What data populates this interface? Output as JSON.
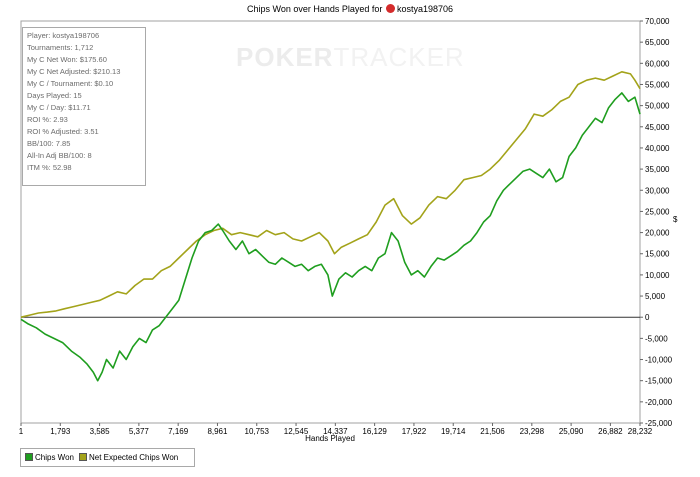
{
  "title": {
    "prefix": "Chips Won over Hands Played for",
    "player": "kostya198706"
  },
  "watermark": {
    "part1": "POKER",
    "part2": "TRACKER"
  },
  "stats": [
    "Player: kostya198706",
    "Tournaments: 1,712",
    "My C Net Won: $175.60",
    "My C Net Adjusted: $210.13",
    "My C / Tournament: $0.10",
    "Days Played: 15",
    "My C / Day: $11.71",
    "ROI %: 2.93",
    "ROI % Adjusted: 3.51",
    "BB/100: 7.85",
    "All-In Adj BB/100: 8",
    "ITM %: 52.98"
  ],
  "legend": [
    {
      "label": "Chips Won",
      "color": "#1f9e1f"
    },
    {
      "label": "Net Expected Chips Won",
      "color": "#a3a31a"
    }
  ],
  "chart_data": {
    "type": "line",
    "xlabel": "Hands Played",
    "ylabel": "$",
    "x_ticks": [
      "1",
      "1,793",
      "3,585",
      "5,377",
      "7,169",
      "8,961",
      "10,753",
      "12,545",
      "14,337",
      "16,129",
      "17,922",
      "19,714",
      "21,506",
      "23,298",
      "25,090",
      "26,882",
      "28,232"
    ],
    "y_ticks": [
      "70,000",
      "65,000",
      "60,000",
      "55,000",
      "50,000",
      "45,000",
      "40,000",
      "35,000",
      "30,000",
      "25,000",
      "20,000",
      "15,000",
      "10,000",
      "5,000",
      "0",
      "-5,000",
      "-10,000",
      "-15,000",
      "-20,000",
      "-25,000"
    ],
    "xlim": [
      1,
      28232
    ],
    "ylim": [
      -25000,
      70000
    ],
    "grid": false,
    "legend_position": "bottom-left",
    "series": [
      {
        "name": "Chips Won",
        "color": "#1f9e1f",
        "x": [
          1,
          300,
          700,
          1100,
          1500,
          1900,
          2300,
          2700,
          3000,
          3300,
          3500,
          3700,
          3900,
          4200,
          4500,
          4800,
          5100,
          5400,
          5700,
          6000,
          6300,
          6600,
          6900,
          7200,
          7500,
          7800,
          8100,
          8400,
          8700,
          9000,
          9200,
          9500,
          9800,
          10100,
          10400,
          10700,
          11000,
          11300,
          11600,
          11900,
          12200,
          12500,
          12800,
          13100,
          13400,
          13700,
          14000,
          14200,
          14500,
          14800,
          15100,
          15400,
          15700,
          16000,
          16300,
          16600,
          16900,
          17200,
          17500,
          17800,
          18100,
          18400,
          18700,
          19000,
          19300,
          19600,
          19900,
          20200,
          20500,
          20800,
          21100,
          21400,
          21700,
          22000,
          22300,
          22600,
          22900,
          23200,
          23500,
          23800,
          24100,
          24400,
          24700,
          25000,
          25300,
          25600,
          25900,
          26200,
          26500,
          26800,
          27100,
          27400,
          27700,
          28000,
          28232
        ],
        "y": [
          -500,
          -1500,
          -2500,
          -4000,
          -5000,
          -6000,
          -8000,
          -9500,
          -11000,
          -13000,
          -15000,
          -13000,
          -10000,
          -12000,
          -8000,
          -10000,
          -7000,
          -5000,
          -6000,
          -3000,
          -2000,
          0,
          2000,
          4000,
          9000,
          14000,
          18000,
          20000,
          20500,
          22000,
          20500,
          18000,
          16000,
          18000,
          15000,
          16000,
          14500,
          13000,
          12500,
          14000,
          13000,
          12000,
          12500,
          11000,
          12000,
          12500,
          10000,
          5000,
          9000,
          10500,
          9500,
          11000,
          12000,
          11000,
          14000,
          15000,
          20000,
          18000,
          13000,
          10000,
          11000,
          9500,
          12000,
          14000,
          13500,
          14500,
          15500,
          17000,
          18000,
          20000,
          22500,
          24000,
          27500,
          30000,
          31500,
          33000,
          34500,
          35000,
          34000,
          33000,
          35000,
          32000,
          33000,
          38000,
          40000,
          43000,
          45000,
          47000,
          46000,
          49500,
          51500,
          53000,
          51000,
          52000,
          48000
        ]
      },
      {
        "name": "Net Expected Chips Won",
        "color": "#a3a31a",
        "x": [
          1,
          400,
          800,
          1200,
          1600,
          2000,
          2400,
          2800,
          3200,
          3600,
          4000,
          4400,
          4800,
          5200,
          5600,
          6000,
          6400,
          6800,
          7200,
          7600,
          8000,
          8400,
          8800,
          9200,
          9600,
          10000,
          10400,
          10800,
          11200,
          11600,
          12000,
          12400,
          12800,
          13200,
          13600,
          14000,
          14300,
          14600,
          15000,
          15400,
          15800,
          16200,
          16600,
          17000,
          17400,
          17800,
          18200,
          18600,
          19000,
          19400,
          19800,
          20200,
          20600,
          21000,
          21400,
          21800,
          22200,
          22600,
          23000,
          23400,
          23800,
          24200,
          24600,
          25000,
          25400,
          25800,
          26200,
          26600,
          27000,
          27400,
          27800,
          28000,
          28232
        ],
        "y": [
          0,
          500,
          1000,
          1200,
          1500,
          2000,
          2500,
          3000,
          3500,
          4000,
          5000,
          6000,
          5500,
          7500,
          9000,
          9000,
          11000,
          12000,
          14000,
          16000,
          18000,
          19500,
          20500,
          21000,
          19500,
          20000,
          19500,
          19000,
          20500,
          19500,
          20000,
          18500,
          18000,
          19000,
          20000,
          18000,
          15000,
          16500,
          17500,
          18500,
          19500,
          22500,
          26500,
          28000,
          24000,
          22000,
          23500,
          26500,
          28500,
          28000,
          30000,
          32500,
          33000,
          33500,
          35000,
          37000,
          39500,
          42000,
          44500,
          48000,
          47500,
          49000,
          51000,
          52000,
          55000,
          56000,
          56500,
          56000,
          57000,
          58000,
          57500,
          56000,
          54000
        ]
      }
    ]
  }
}
